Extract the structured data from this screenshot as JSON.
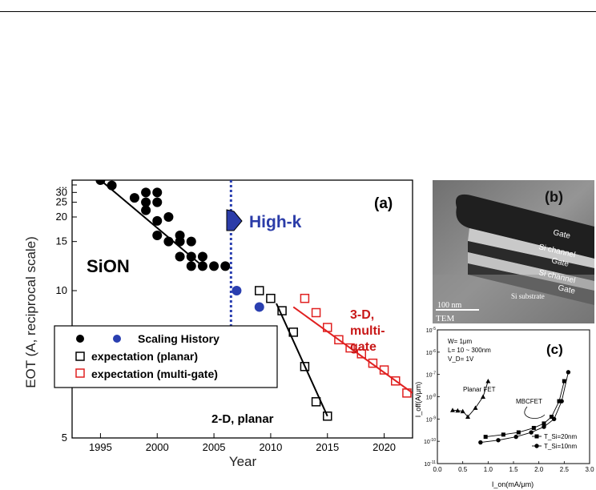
{
  "main_chart": {
    "ylabel": "EOT (A, reciprocal scale)",
    "xlabel": "Year",
    "panel_label": "(a)",
    "x_ticks": [
      1995,
      2000,
      2005,
      2010,
      2015,
      2020
    ],
    "y_ticks": [
      "5",
      "10",
      "15",
      "20",
      "25",
      "30",
      "..."
    ],
    "annotations": {
      "sion": "SiON",
      "highk": "High-k",
      "planar": "2-D, planar",
      "multigate_line1": "3-D,",
      "multigate_line2": "multi-",
      "multigate_line3": "gate"
    },
    "legend": {
      "scaling": "Scaling History",
      "planar": "expectation (planar)",
      "multigate": "expectation (multi-gate)"
    }
  },
  "chart_data": [
    {
      "type": "scatter",
      "xlabel": "Year",
      "ylabel": "EOT (A, reciprocal scale)",
      "xlim": [
        1992.5,
        2022.5
      ],
      "ylim": [
        5,
        40
      ],
      "y_scale": "reciprocal",
      "legend_position": "bottom-left",
      "colors": {
        "sion": "#000000",
        "highk": "#2a3fb0",
        "multigate": "#e02020",
        "highk_text": "#2b3ca8",
        "multigate_text": "#c81818"
      },
      "series": [
        {
          "name": "Scaling History",
          "marker": "filled-circle",
          "color": "#000000",
          "points": [
            [
              1995,
              40
            ],
            [
              1996,
              35
            ],
            [
              1998,
              27
            ],
            [
              1999,
              30
            ],
            [
              1999,
              25
            ],
            [
              2000,
              30
            ],
            [
              2000,
              25
            ],
            [
              1999,
              22
            ],
            [
              2000,
              19
            ],
            [
              2001,
              20
            ],
            [
              2000,
              16
            ],
            [
              2001,
              15
            ],
            [
              2002,
              16
            ],
            [
              2002,
              15
            ],
            [
              2003,
              15
            ],
            [
              2002,
              13
            ],
            [
              2003,
              13
            ],
            [
              2004,
              13
            ],
            [
              2003,
              12
            ],
            [
              2004,
              12
            ],
            [
              2005,
              12
            ],
            [
              2006,
              12
            ]
          ]
        },
        {
          "name": "Scaling History",
          "marker": "filled-circle",
          "color": "#2a3fb0",
          "points": [
            [
              2007,
              10
            ],
            [
              2009,
              9
            ]
          ]
        },
        {
          "name": "expectation (planar)",
          "marker": "open-square",
          "color": "#000000",
          "points": [
            [
              2009,
              10
            ],
            [
              2010,
              9.5
            ],
            [
              2011,
              8.8
            ],
            [
              2012,
              7.8
            ],
            [
              2013,
              6.6
            ],
            [
              2014,
              5.7
            ],
            [
              2015,
              5.4
            ]
          ]
        },
        {
          "name": "expectation (multi-gate)",
          "marker": "open-square",
          "color": "#e02020",
          "points": [
            [
              2013,
              9.5
            ],
            [
              2014,
              8.7
            ],
            [
              2015,
              8.0
            ],
            [
              2016,
              7.5
            ],
            [
              2017,
              7.2
            ],
            [
              2018,
              7.0
            ],
            [
              2019,
              6.7
            ],
            [
              2020,
              6.5
            ],
            [
              2021,
              6.2
            ],
            [
              2022,
              5.9
            ]
          ]
        }
      ],
      "trend_lines": [
        {
          "series": "Scaling History",
          "from": [
            1995,
            40
          ],
          "to": [
            2004,
            12
          ],
          "color": "#000000"
        },
        {
          "series": "expectation (planar)",
          "from": [
            2010.5,
            9.2
          ],
          "to": [
            2015,
            5.4
          ],
          "color": "#000000"
        },
        {
          "series": "expectation (multi-gate)",
          "from": [
            2012,
            9.0
          ],
          "to": [
            2022.5,
            5.9
          ],
          "color": "#e02020"
        }
      ],
      "vertical_marker": {
        "x": 2006.5,
        "style": "dotted",
        "color": "#2a3fb0"
      }
    },
    {
      "type": "line",
      "xlabel": "I_on(mA/μm)",
      "ylabel": "I_off(A/μm)",
      "xlim": [
        0.0,
        3.0
      ],
      "ylim_exponent": [
        -11,
        -5
      ],
      "y_scale": "log",
      "x_ticks": [
        "0.0",
        "0.5",
        "1.0",
        "1.5",
        "2.0",
        "2.5",
        "3.0"
      ],
      "y_tick_exponents": [
        -11,
        -10,
        -9,
        -8,
        -7,
        -6,
        -5
      ],
      "panel_label": "(c)",
      "conditions": [
        "W= 1μm",
        "L= 10 ~ 300nm",
        "V_D= 1V"
      ],
      "labels": {
        "planar": "Planar FET",
        "mbcfet": "MBCFET"
      },
      "series": [
        {
          "name": "Planar FET",
          "marker": "filled-triangle",
          "points": [
            [
              0.3,
              -8.6
            ],
            [
              0.4,
              -8.62
            ],
            [
              0.5,
              -8.65
            ],
            [
              0.6,
              -8.9
            ],
            [
              0.75,
              -8.5
            ],
            [
              0.9,
              -8.0
            ],
            [
              1.0,
              -7.3
            ]
          ]
        },
        {
          "name": "T_Si=20nm",
          "marker": "filled-square",
          "points": [
            [
              0.95,
              -9.8
            ],
            [
              1.3,
              -9.7
            ],
            [
              1.6,
              -9.6
            ],
            [
              1.9,
              -9.4
            ],
            [
              2.1,
              -9.2
            ],
            [
              2.25,
              -8.9
            ],
            [
              2.4,
              -8.2
            ],
            [
              2.5,
              -7.3
            ]
          ]
        },
        {
          "name": "T_Si=10nm",
          "marker": "filled-circle",
          "points": [
            [
              0.85,
              -10.05
            ],
            [
              1.2,
              -9.95
            ],
            [
              1.55,
              -9.8
            ],
            [
              1.85,
              -9.6
            ],
            [
              2.1,
              -9.35
            ],
            [
              2.3,
              -9.0
            ],
            [
              2.45,
              -8.2
            ],
            [
              2.58,
              -6.9
            ]
          ]
        }
      ],
      "legend": [
        "T_Si=20nm",
        "T_Si=10nm"
      ],
      "legend_position": "bottom-right"
    }
  ],
  "tem_image": {
    "panel_label": "(b)",
    "labels": [
      "Gate",
      "Si channel",
      "Gate",
      "Si channel",
      "Gate",
      "Si substrate"
    ],
    "scale_bar": "100 nm",
    "caption": "TEM"
  }
}
